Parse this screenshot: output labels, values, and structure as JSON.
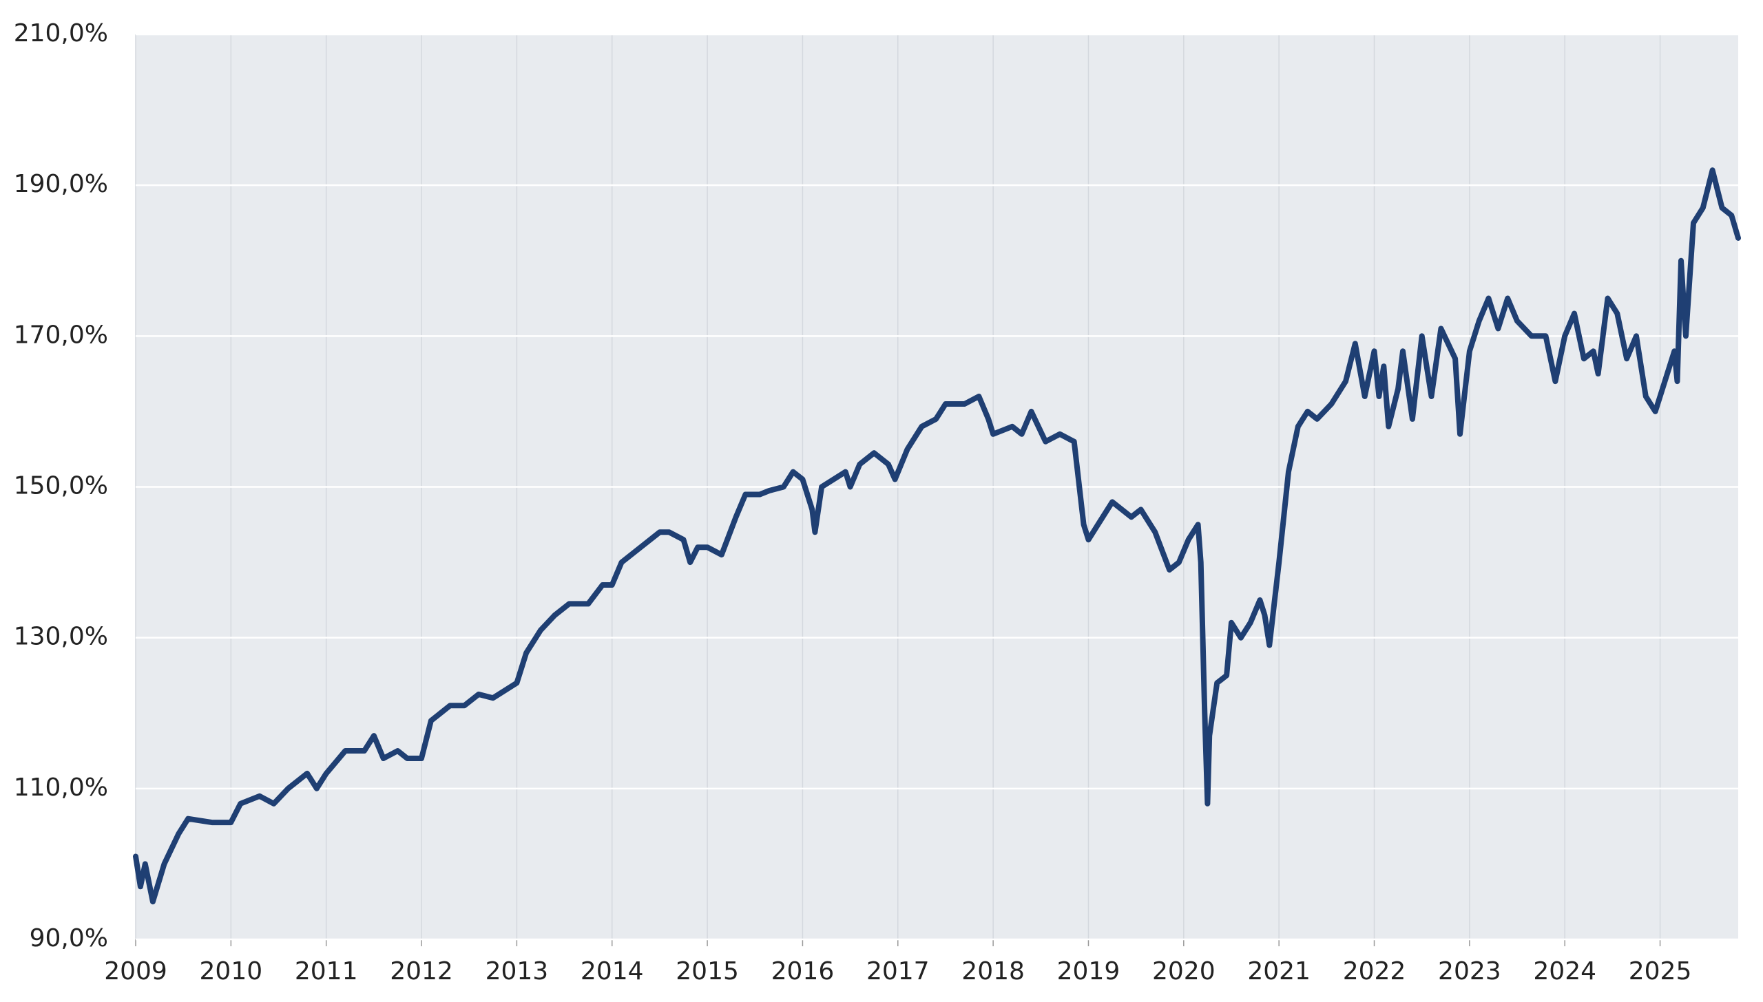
{
  "chart_data": {
    "type": "line",
    "x": [
      2009.0,
      2009.05,
      2009.1,
      2009.18,
      2009.3,
      2009.45,
      2009.55,
      2009.8,
      2010.0,
      2010.1,
      2010.3,
      2010.45,
      2010.6,
      2010.8,
      2010.9,
      2011.0,
      2011.2,
      2011.4,
      2011.5,
      2011.6,
      2011.75,
      2011.85,
      2012.0,
      2012.1,
      2012.3,
      2012.45,
      2012.6,
      2012.75,
      2013.0,
      2013.1,
      2013.25,
      2013.4,
      2013.55,
      2013.75,
      2013.9,
      2014.0,
      2014.1,
      2014.3,
      2014.5,
      2014.6,
      2014.75,
      2014.82,
      2014.9,
      2015.0,
      2015.15,
      2015.3,
      2015.4,
      2015.55,
      2015.65,
      2015.8,
      2015.9,
      2016.0,
      2016.1,
      2016.13,
      2016.2,
      2016.45,
      2016.5,
      2016.6,
      2016.75,
      2016.9,
      2016.97,
      2017.1,
      2017.25,
      2017.4,
      2017.5,
      2017.7,
      2017.85,
      2017.95,
      2018.0,
      2018.2,
      2018.3,
      2018.4,
      2018.55,
      2018.7,
      2018.85,
      2018.95,
      2019.0,
      2019.1,
      2019.25,
      2019.45,
      2019.55,
      2019.7,
      2019.85,
      2019.95,
      2020.05,
      2020.15,
      2020.18,
      2020.22,
      2020.25,
      2020.27,
      2020.35,
      2020.45,
      2020.5,
      2020.6,
      2020.7,
      2020.8,
      2020.85,
      2020.9,
      2021.0,
      2021.1,
      2021.2,
      2021.3,
      2021.4,
      2021.55,
      2021.7,
      2021.8,
      2021.9,
      2022.0,
      2022.05,
      2022.1,
      2022.15,
      2022.25,
      2022.3,
      2022.4,
      2022.5,
      2022.6,
      2022.7,
      2022.85,
      2022.9,
      2023.0,
      2023.1,
      2023.2,
      2023.3,
      2023.4,
      2023.5,
      2023.65,
      2023.8,
      2023.9,
      2024.0,
      2024.1,
      2024.2,
      2024.3,
      2024.35,
      2024.45,
      2024.55,
      2024.65,
      2024.75,
      2024.85,
      2024.95,
      2025.05,
      2025.15,
      2025.18,
      2025.22,
      2025.27,
      2025.35,
      2025.45,
      2025.55,
      2025.65,
      2025.75,
      2025.82
    ],
    "values": [
      101,
      97,
      100,
      95,
      100,
      104,
      106,
      105.5,
      105.5,
      108,
      109,
      108,
      110,
      112,
      110,
      112,
      115,
      115,
      117,
      114,
      115,
      114,
      114,
      119,
      121,
      121,
      122.5,
      122,
      124,
      128,
      131,
      133,
      134.5,
      134.5,
      137,
      137,
      140,
      142,
      144,
      144,
      143,
      140,
      142,
      142,
      141,
      146,
      149,
      149,
      149.5,
      150,
      152,
      151,
      147,
      144,
      150,
      152,
      150,
      153,
      154.5,
      153,
      151,
      155,
      158,
      159,
      161,
      161,
      162,
      159,
      157,
      158,
      157,
      160,
      156,
      157,
      156,
      145,
      143,
      145,
      148,
      146,
      147,
      144,
      139,
      140,
      143,
      145,
      140,
      120,
      108,
      117,
      124,
      125,
      132,
      130,
      132,
      135,
      133,
      129,
      140,
      152,
      158,
      160,
      159,
      161,
      164,
      169,
      162,
      168,
      162,
      166,
      158,
      163,
      168,
      159,
      170,
      162,
      171,
      167,
      157,
      168,
      172,
      175,
      171,
      175,
      172,
      170,
      170,
      164,
      170,
      173,
      167,
      168,
      165,
      175,
      173,
      167,
      170,
      162,
      160,
      164,
      168,
      164,
      180,
      170,
      185,
      187,
      192,
      187,
      186,
      183
    ],
    "color": "#1f3f73",
    "xlim": [
      2009,
      2025.82
    ],
    "xticks": [
      2009,
      2010,
      2011,
      2012,
      2013,
      2014,
      2015,
      2016,
      2017,
      2018,
      2019,
      2020,
      2021,
      2022,
      2023,
      2024,
      2025
    ],
    "ylim": [
      90,
      210
    ],
    "yticks": [
      {
        "value": 90,
        "label": "90,0%"
      },
      {
        "value": 110,
        "label": "110,0%"
      },
      {
        "value": 130,
        "label": "130,0%"
      },
      {
        "value": 150,
        "label": "150,0%"
      },
      {
        "value": 170,
        "label": "170,0%"
      },
      {
        "value": 190,
        "label": "190,0%"
      },
      {
        "value": 210,
        "label": "210,0%"
      }
    ],
    "grid": true
  }
}
